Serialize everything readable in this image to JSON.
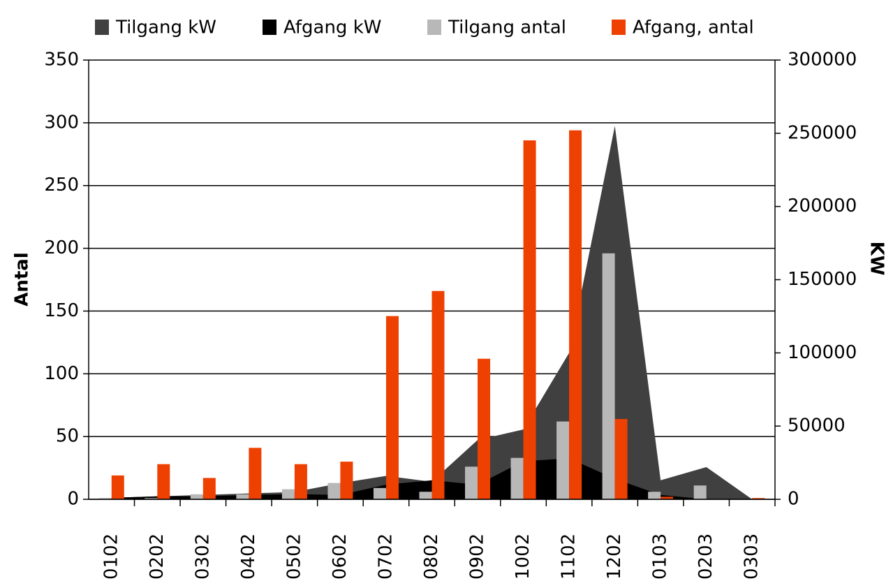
{
  "chart_data": {
    "type": "bar-area",
    "categories": [
      "0102",
      "0202",
      "0302",
      "0402",
      "0502",
      "0602",
      "0702",
      "0802",
      "0902",
      "1002",
      "1102",
      "1202",
      "0103",
      "0203",
      "0303"
    ],
    "y_label": "Antal",
    "y2_label": "KW",
    "ylim": [
      0,
      350
    ],
    "yticks": [
      0,
      50,
      100,
      150,
      200,
      250,
      300,
      350
    ],
    "y2lim": [
      0,
      300000
    ],
    "y2ticks": [
      0,
      50000,
      100000,
      150000,
      200000,
      250000,
      300000
    ],
    "grid": true,
    "series": [
      {
        "name": "Tilgang kW",
        "kind": "area",
        "axis": "y2",
        "color": "#404040",
        "values": [
          1000,
          2000,
          3000,
          4000,
          5000,
          11000,
          16000,
          12000,
          40500,
          47700,
          100000,
          255000,
          13000,
          22000,
          0
        ]
      },
      {
        "name": "Afgang kW",
        "kind": "area",
        "axis": "y2",
        "color": "#000000",
        "values": [
          1000,
          2000,
          2000,
          3000,
          3500,
          3000,
          10000,
          13000,
          10000,
          26000,
          28000,
          14000,
          3000,
          0,
          0
        ]
      },
      {
        "name": "Tilgang antal",
        "kind": "bar",
        "axis": "y",
        "color": "#b8b8b8",
        "values": [
          1,
          1,
          4,
          4,
          8,
          13,
          9,
          6,
          26,
          33,
          62,
          196,
          6,
          11,
          0
        ]
      },
      {
        "name": "Afgang, antal",
        "kind": "bar",
        "axis": "y",
        "color": "#ee4000",
        "values": [
          19,
          28,
          17,
          41,
          28,
          30,
          146,
          166,
          112,
          286,
          294,
          64,
          2,
          0,
          1
        ]
      }
    ]
  }
}
